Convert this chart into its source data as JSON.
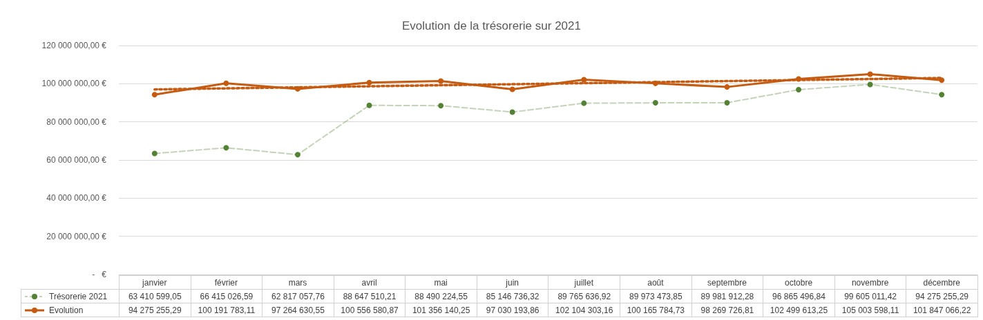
{
  "chart_data": {
    "type": "line",
    "title": "Evolution de la trésorerie sur 2021",
    "categories": [
      "janvier",
      "février",
      "mars",
      "avril",
      "mai",
      "juin",
      "juillet",
      "août",
      "septembre",
      "octobre",
      "novembre",
      "décembre"
    ],
    "series": [
      {
        "name": "Trésorerie 2021",
        "color": "#548235",
        "line_style": "dashed",
        "marker": "circle",
        "values": [
          63410599.05,
          66415026.59,
          62817057.76,
          88647510.21,
          88490224.55,
          85146736.32,
          89765636.92,
          89973473.85,
          89981912.28,
          96865496.84,
          99605011.42,
          94275255.29
        ],
        "value_labels": [
          "63 410 599,05",
          "66 415 026,59",
          "62 817 057,76",
          "88 647 510,21",
          "88 490 224,55",
          "85 146 736,32",
          "89 765 636,92",
          "89 973 473,85",
          "89 981 912,28",
          "96 865 496,84",
          "99 605 011,42",
          "94 275 255,29"
        ]
      },
      {
        "type": "line",
        "color": "#c55a11",
        "line_style": "dotted",
        "marker": "none",
        "x": [
          "janvier",
          "décembre"
        ],
        "values": [
          97000000,
          103000000
        ]
      },
      {
        "name": "Evolution",
        "color": "#c55a11",
        "line_style": "solid",
        "marker": "circle",
        "values": [
          94275255.29,
          100191783.11,
          97264630.55,
          100556580.87,
          101356140.25,
          97030193.86,
          102104303.16,
          100165784.73,
          98269726.81,
          102499613.25,
          105003598.11,
          101847066.22
        ],
        "value_labels": [
          "94 275 255,29",
          "100 191 783,11",
          "97 264 630,55",
          "100 556 580,87",
          "101 356 140,25",
          "97 030 193,86",
          "102 104 303,16",
          "100 165 784,73",
          "98 269 726,81",
          "102 499 613,25",
          "105 003 598,11",
          "101 847 066,22"
        ]
      }
    ],
    "ylim": [
      0,
      120000000
    ],
    "yticks": [
      {
        "value": 0,
        "label": "-   €"
      },
      {
        "value": 20000000,
        "label": "20 000 000,00 €"
      },
      {
        "value": 40000000,
        "label": "40 000 000,00 €"
      },
      {
        "value": 60000000,
        "label": "60 000 000,00 €"
      },
      {
        "value": 80000000,
        "label": "80 000 000,00 €"
      },
      {
        "value": 100000000,
        "label": "100 000 000,00 €"
      },
      {
        "value": 120000000,
        "label": "120 000 000,00 €"
      }
    ],
    "grid": "y",
    "legend": "bottom"
  }
}
